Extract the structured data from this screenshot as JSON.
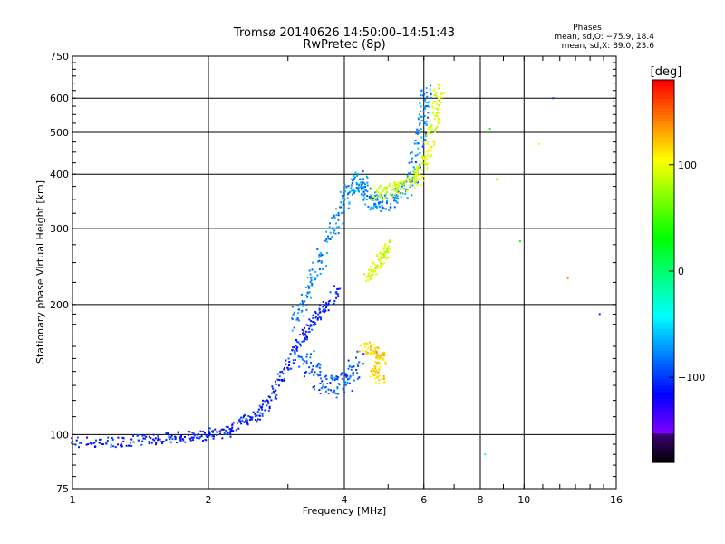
{
  "chart_data": {
    "type": "scatter",
    "title": "Tromsø 20140626 14:50:00–14:51:43",
    "subtitle": "RwPretec (8p)",
    "xlabel": "Frequency [MHz]",
    "ylabel": "Stationary phase Virtual Height [km]",
    "x_scale": "log",
    "y_scale": "log",
    "xlim": [
      1,
      16
    ],
    "ylim": [
      75,
      750
    ],
    "x_ticks": [
      1,
      2,
      4,
      6,
      8,
      10,
      16
    ],
    "x_tick_labels": [
      "1",
      "2",
      "4",
      "6",
      "8",
      "10",
      "16"
    ],
    "y_ticks": [
      75,
      100,
      200,
      300,
      400,
      500,
      600,
      750
    ],
    "y_tick_labels": [
      "75",
      "100",
      "200",
      "300",
      "400",
      "500",
      "600",
      "750"
    ],
    "grid": true,
    "annotation": {
      "heading": "Phases",
      "line1": "mean, sd,O:  −75.9, 18.4",
      "line2": "mean, sd,X:  89.0, 23.6"
    },
    "colorbar": {
      "label": "[deg]",
      "range": [
        -180,
        180
      ],
      "ticks": [
        100,
        0,
        -100
      ],
      "tick_labels": [
        "100",
        "0",
        "−100"
      ]
    },
    "traces": [
      {
        "phase": -105,
        "spread": 0.04,
        "points": [
          [
            1.0,
            96
          ],
          [
            1.2,
            96
          ],
          [
            1.4,
            97
          ],
          [
            1.6,
            98
          ],
          [
            1.8,
            99
          ],
          [
            2.0,
            100
          ],
          [
            2.2,
            102
          ],
          [
            2.4,
            108
          ],
          [
            2.6,
            112
          ],
          [
            2.8,
            125
          ],
          [
            3.0,
            145
          ],
          [
            3.2,
            165
          ],
          [
            3.4,
            180
          ],
          [
            3.6,
            195
          ],
          [
            3.9,
            220
          ]
        ]
      },
      {
        "phase": -75,
        "spread": 0.06,
        "points": [
          [
            3.1,
            180
          ],
          [
            3.3,
            210
          ],
          [
            3.5,
            250
          ],
          [
            3.8,
            300
          ],
          [
            4.0,
            350
          ],
          [
            4.2,
            380
          ],
          [
            4.4,
            390
          ],
          [
            4.5,
            360
          ],
          [
            4.7,
            340
          ],
          [
            5.0,
            345
          ],
          [
            5.4,
            360
          ],
          [
            5.7,
            400
          ],
          [
            5.9,
            480
          ],
          [
            6.0,
            560
          ],
          [
            6.1,
            640
          ]
        ]
      },
      {
        "phase": -90,
        "spread": 0.08,
        "points": [
          [
            3.2,
            160
          ],
          [
            3.4,
            140
          ],
          [
            3.6,
            132
          ],
          [
            3.9,
            128
          ],
          [
            4.1,
            135
          ],
          [
            4.3,
            150
          ]
        ]
      },
      {
        "phase": 95,
        "spread": 0.05,
        "points": [
          [
            4.6,
            360
          ],
          [
            5.0,
            365
          ],
          [
            5.4,
            375
          ],
          [
            5.8,
            390
          ],
          [
            6.0,
            420
          ],
          [
            6.2,
            480
          ],
          [
            6.4,
            560
          ],
          [
            6.5,
            630
          ]
        ]
      },
      {
        "phase": 90,
        "spread": 0.04,
        "points": [
          [
            4.5,
            230
          ],
          [
            4.7,
            245
          ],
          [
            4.9,
            260
          ],
          [
            5.0,
            275
          ]
        ]
      },
      {
        "phase": 120,
        "spread": 0.04,
        "points": [
          [
            4.4,
            160
          ],
          [
            4.7,
            157
          ],
          [
            4.9,
            150
          ],
          [
            4.6,
            138
          ],
          [
            4.9,
            134
          ]
        ]
      }
    ],
    "sparse_points": [
      {
        "x": 8.2,
        "y": 90,
        "phase": -30
      },
      {
        "x": 8.4,
        "y": 510,
        "phase": 30
      },
      {
        "x": 8.7,
        "y": 390,
        "phase": 120
      },
      {
        "x": 9.8,
        "y": 280,
        "phase": 20
      },
      {
        "x": 10.8,
        "y": 470,
        "phase": 100
      },
      {
        "x": 11.6,
        "y": 600,
        "phase": -100
      },
      {
        "x": 12.5,
        "y": 230,
        "phase": 140
      },
      {
        "x": 14.7,
        "y": 190,
        "phase": -100
      },
      {
        "x": 15.8,
        "y": 590,
        "phase": 0
      }
    ]
  }
}
